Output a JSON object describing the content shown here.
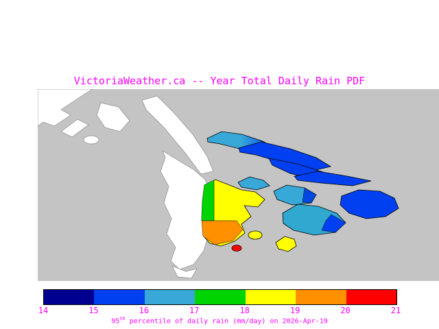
{
  "title": "VictoriaWeather.ca -- Year Total Daily Rain PDF",
  "caption": {
    "value_prefix": "95",
    "value_superscript": "th",
    "value_suffix": " percentile of daily rain (mm/day) on 2026-Apr-19"
  },
  "colorbar": {
    "ticks": [
      "14",
      "15",
      "16",
      "17",
      "18",
      "19",
      "20",
      "21"
    ],
    "segment_colors": [
      "#000090",
      "#0040f0",
      "#38a8d8",
      "#00d400",
      "#ffff00",
      "#ff9000",
      "#ff0000"
    ]
  },
  "map": {
    "sea_color": "#c4c4c4",
    "land_color": "#ffffff",
    "text_color": "#ff00ff"
  },
  "chart_data": {
    "type": "heatmap",
    "title": "VictoriaWeather.ca -- Year Total Daily Rain PDF",
    "variable": "95th percentile of daily rain",
    "units": "mm/day",
    "date": "2026-Apr-19",
    "colorbar_ticks": [
      14,
      15,
      16,
      17,
      18,
      19,
      20,
      21
    ],
    "colorbar_range": [
      14,
      21
    ],
    "colorbar_segment_colors": [
      "#000090",
      "#0040f0",
      "#38a8d8",
      "#00d400",
      "#ffff00",
      "#ff9000",
      "#ff0000"
    ],
    "legend_position": "bottom",
    "notes": "Geographic contour map of southern Vancouver Island / Gulf Islands; islands shaded from blue (~15-16 mm/day) in northeast to yellow/orange/red (~18-21 mm/day) on central island"
  }
}
